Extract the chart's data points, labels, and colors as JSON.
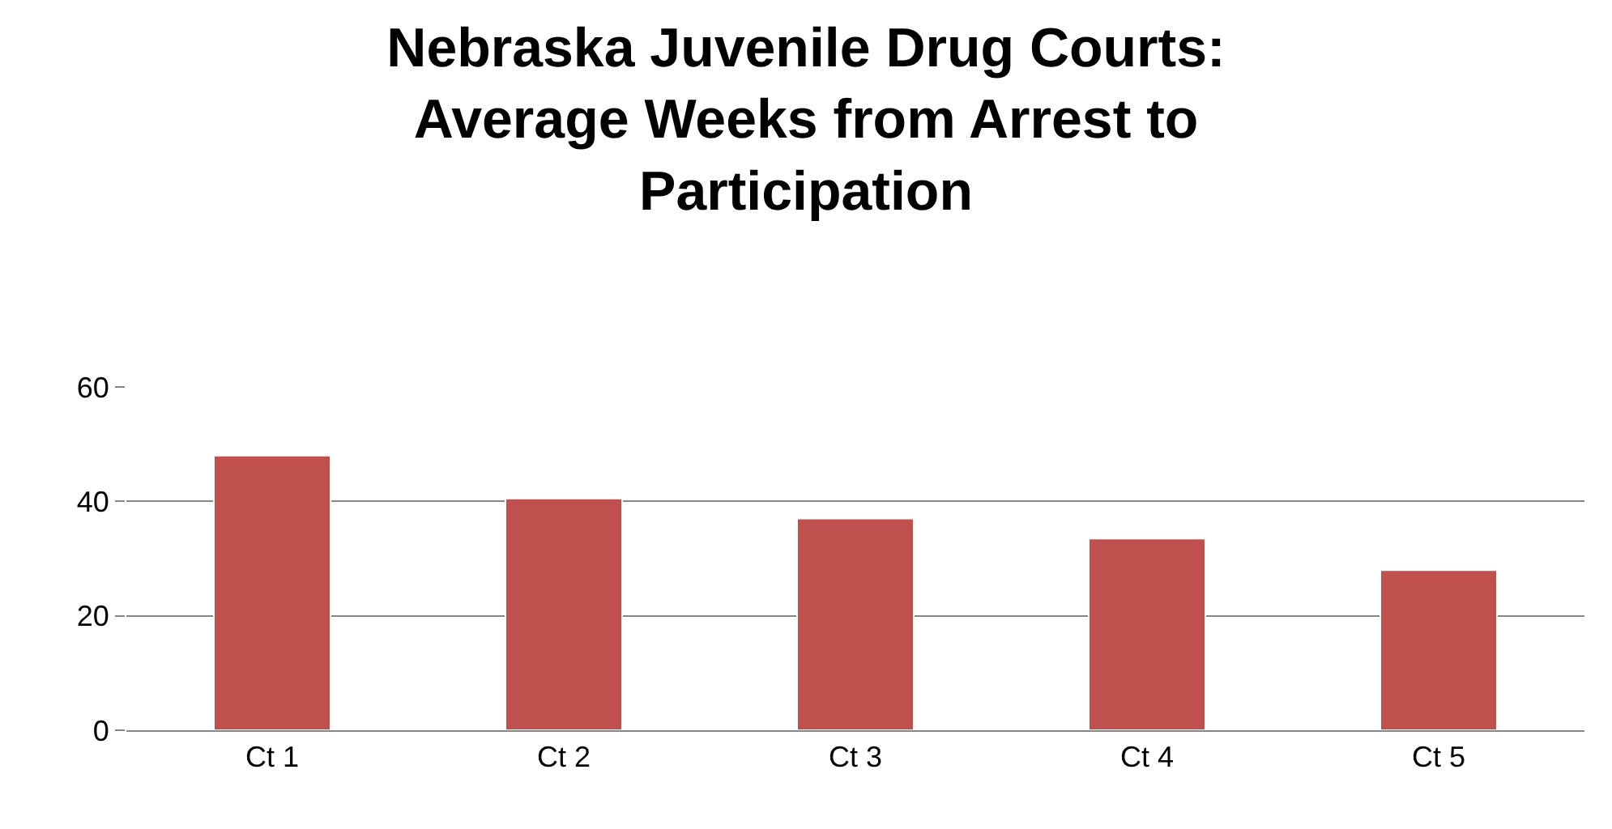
{
  "chart_data": {
    "type": "bar",
    "title": "Nebraska Juvenile Drug Courts: Average Weeks from Arrest to Participation",
    "categories": [
      "Ct 1",
      "Ct 2",
      "Ct 3",
      "Ct 4",
      "Ct 5"
    ],
    "values": [
      48,
      40.5,
      37,
      33.5,
      28
    ],
    "color": "#c0504d",
    "ylim": [
      0,
      60
    ],
    "yticks": [
      0,
      20,
      40,
      60
    ],
    "grid": "y",
    "legend": false
  }
}
